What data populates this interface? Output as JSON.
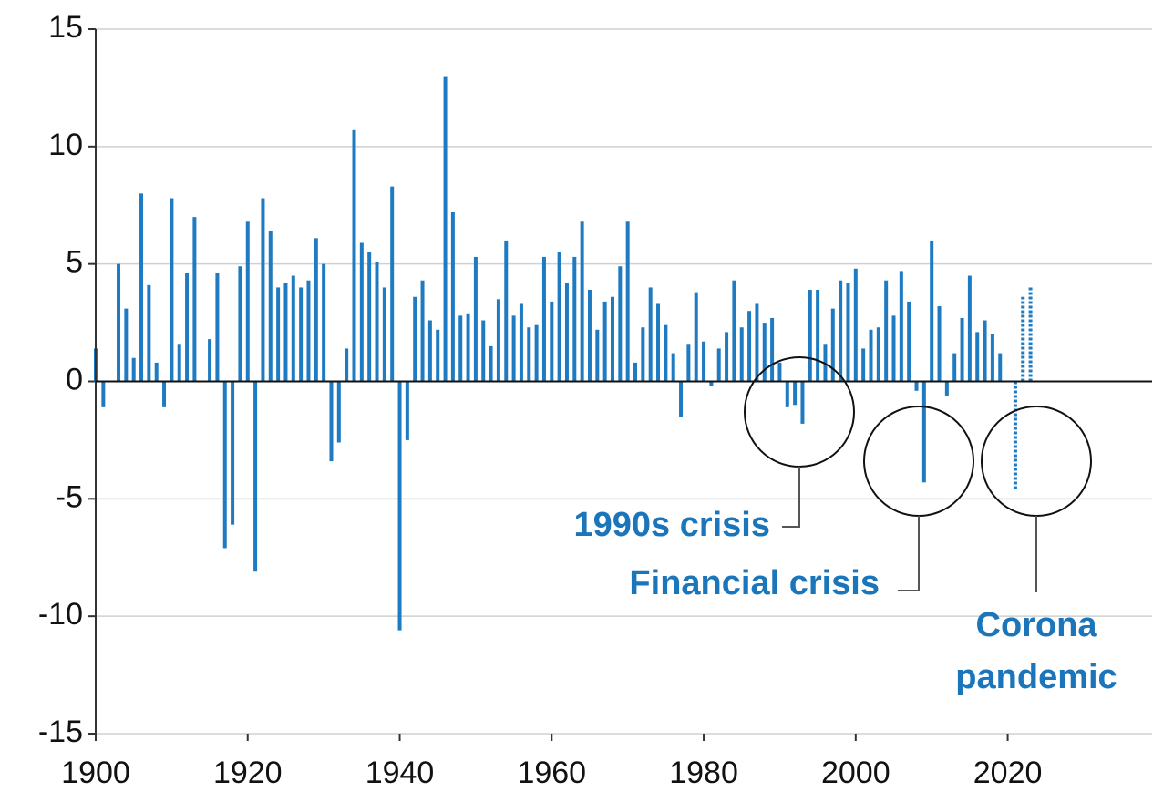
{
  "chart_data": {
    "type": "bar",
    "series": [
      {
        "color": "#1f7bc1",
        "x": [
          1900,
          1901,
          1902,
          1903,
          1904,
          1905,
          1906,
          1907,
          1908,
          1909,
          1910,
          1911,
          1912,
          1913,
          1914,
          1915,
          1916,
          1917,
          1918,
          1919,
          1920,
          1921,
          1922,
          1923,
          1924,
          1925,
          1926,
          1927,
          1928,
          1929,
          1930,
          1931,
          1932,
          1933,
          1934,
          1935,
          1936,
          1937,
          1938,
          1939,
          1940,
          1941,
          1942,
          1943,
          1944,
          1945,
          1946,
          1947,
          1948,
          1949,
          1950,
          1951,
          1952,
          1953,
          1954,
          1955,
          1956,
          1957,
          1958,
          1959,
          1960,
          1961,
          1962,
          1963,
          1964,
          1965,
          1966,
          1967,
          1968,
          1969,
          1970,
          1971,
          1972,
          1973,
          1974,
          1975,
          1976,
          1977,
          1978,
          1979,
          1980,
          1981,
          1982,
          1983,
          1984,
          1985,
          1986,
          1987,
          1988,
          1989,
          1990,
          1991,
          1992,
          1993,
          1994,
          1995,
          1996,
          1997,
          1998,
          1999,
          2000,
          2001,
          2002,
          2003,
          2004,
          2005,
          2006,
          2007,
          2008,
          2009,
          2010,
          2011,
          2012,
          2013,
          2014,
          2015,
          2016,
          2017,
          2018,
          2019
        ],
        "values": [
          1.4,
          -1.1,
          0,
          5.0,
          3.1,
          1.0,
          8.0,
          4.1,
          0.8,
          -1.1,
          7.8,
          1.6,
          4.6,
          7.0,
          0,
          1.8,
          4.6,
          -7.1,
          -6.1,
          4.9,
          6.8,
          -8.1,
          7.8,
          6.4,
          4.0,
          4.2,
          4.5,
          4.0,
          4.3,
          6.1,
          5.0,
          -3.4,
          -2.6,
          1.4,
          10.7,
          5.9,
          5.5,
          5.1,
          4.0,
          8.3,
          -10.6,
          -2.5,
          3.6,
          4.3,
          2.6,
          2.2,
          13.0,
          7.2,
          2.8,
          2.9,
          5.3,
          2.6,
          1.5,
          3.5,
          6.0,
          2.8,
          3.3,
          2.3,
          2.4,
          5.3,
          3.4,
          5.5,
          4.2,
          5.3,
          6.8,
          3.9,
          2.2,
          3.4,
          3.6,
          4.9,
          6.8,
          0.8,
          2.3,
          4.0,
          3.3,
          2.4,
          1.2,
          -1.5,
          1.6,
          3.8,
          1.7,
          -0.2,
          1.4,
          2.1,
          4.3,
          2.3,
          3.0,
          3.3,
          2.5,
          2.7,
          0.8,
          -1.1,
          -1.0,
          -1.8,
          3.9,
          3.9,
          1.6,
          3.1,
          4.3,
          4.2,
          4.8,
          1.4,
          2.2,
          2.3,
          4.3,
          2.8,
          4.7,
          3.4,
          -0.4,
          -4.3,
          6.0,
          3.2,
          -0.6,
          1.2,
          2.7,
          4.5,
          2.1,
          2.6,
          2.0,
          1.2
        ]
      },
      {
        "color": "#1f7bc1",
        "dashed": true,
        "x": [
          2021,
          2022,
          2023
        ],
        "values": [
          -4.6,
          3.6,
          4.0
        ]
      }
    ],
    "xlim": [
      1900,
      2039
    ],
    "xticks": [
      1900,
      1920,
      1940,
      1960,
      1980,
      2000,
      2020
    ],
    "ylim": [
      -15,
      15
    ],
    "yticks": [
      -15,
      -10,
      -5,
      0,
      5,
      10,
      15
    ],
    "grid": true,
    "annotations": [
      "1990s crisis",
      "Financial crisis",
      "Corona",
      "pandemic"
    ]
  }
}
